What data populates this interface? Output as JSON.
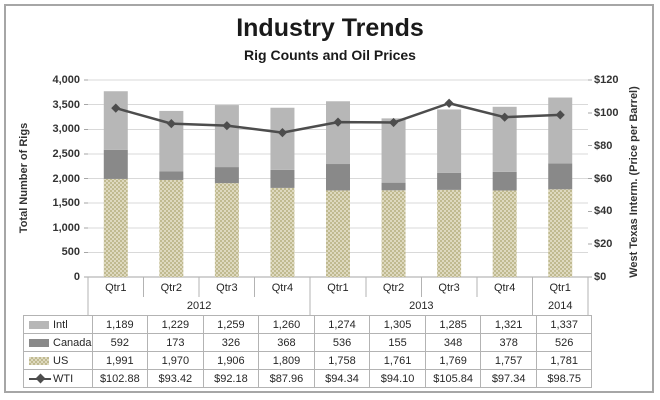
{
  "title": "Industry Trends",
  "subtitle": "Rig Counts and Oil Prices",
  "left_axis": {
    "title": "Total Number of Rigs",
    "ticks": [
      "4,000",
      "3,500",
      "3,000",
      "2,500",
      "2,000",
      "1,500",
      "1,000",
      "500",
      "0"
    ]
  },
  "right_axis": {
    "title": "West Texas Interm. (Price per Barrel)",
    "ticks": [
      "$120",
      "$100",
      "$80",
      "$60",
      "$40",
      "$20",
      "$0"
    ]
  },
  "chart_data": {
    "type": "combo-stacked-bar-line",
    "categories": [
      "Qtr1",
      "Qtr2",
      "Qtr3",
      "Qtr4",
      "Qtr1",
      "Qtr2",
      "Qtr3",
      "Qtr4",
      "Qtr1"
    ],
    "year_groups": [
      {
        "label": "2012",
        "span": 4
      },
      {
        "label": "2013",
        "span": 4
      },
      {
        "label": "2014",
        "span": 1
      }
    ],
    "ylim_left": [
      0,
      4000
    ],
    "ylim_right": [
      0,
      120
    ],
    "grid": "horizontal",
    "legend_position": "table-left",
    "series": [
      {
        "name": "US",
        "type": "bar",
        "axis": "left",
        "color": "pattern-khaki",
        "values": [
          1991,
          1970,
          1906,
          1809,
          1758,
          1761,
          1769,
          1757,
          1781
        ]
      },
      {
        "name": "Canada",
        "type": "bar",
        "axis": "left",
        "color": "#898989",
        "values": [
          592,
          173,
          326,
          368,
          536,
          155,
          348,
          378,
          526
        ]
      },
      {
        "name": "Intl",
        "type": "bar",
        "axis": "left",
        "color": "#b7b7b7",
        "values": [
          1189,
          1229,
          1259,
          1260,
          1274,
          1305,
          1285,
          1321,
          1337
        ]
      },
      {
        "name": "WTI",
        "type": "line",
        "axis": "right",
        "color": "#4d4d4d",
        "values": [
          102.88,
          93.42,
          92.18,
          87.96,
          94.34,
          94.1,
          105.84,
          97.34,
          98.75
        ]
      }
    ]
  },
  "table": {
    "rows": [
      {
        "key": "intl",
        "label": "Intl",
        "cells": [
          "1,189",
          "1,229",
          "1,259",
          "1,260",
          "1,274",
          "1,305",
          "1,285",
          "1,321",
          "1,337"
        ]
      },
      {
        "key": "canada",
        "label": "Canada",
        "cells": [
          "592",
          "173",
          "326",
          "368",
          "536",
          "155",
          "348",
          "378",
          "526"
        ]
      },
      {
        "key": "us",
        "label": "US",
        "cells": [
          "1,991",
          "1,970",
          "1,906",
          "1,809",
          "1,758",
          "1,761",
          "1,769",
          "1,757",
          "1,781"
        ]
      },
      {
        "key": "wti",
        "label": "WTI",
        "cells": [
          "$102.88",
          "$93.42",
          "$92.18",
          "$87.96",
          "$94.34",
          "$94.10",
          "$105.84",
          "$97.34",
          "$98.75"
        ]
      }
    ]
  },
  "colors": {
    "intl": "#b7b7b7",
    "canada": "#898989",
    "us_pattern_light": "#ded9bf",
    "us_pattern_dark": "#c0ba90",
    "wti_line": "#4d4d4d",
    "gridline": "#d9d9d9",
    "axis_line": "#a6a6a6",
    "separator": "#b3b3b3",
    "frame_border": "#a6a6a6"
  }
}
